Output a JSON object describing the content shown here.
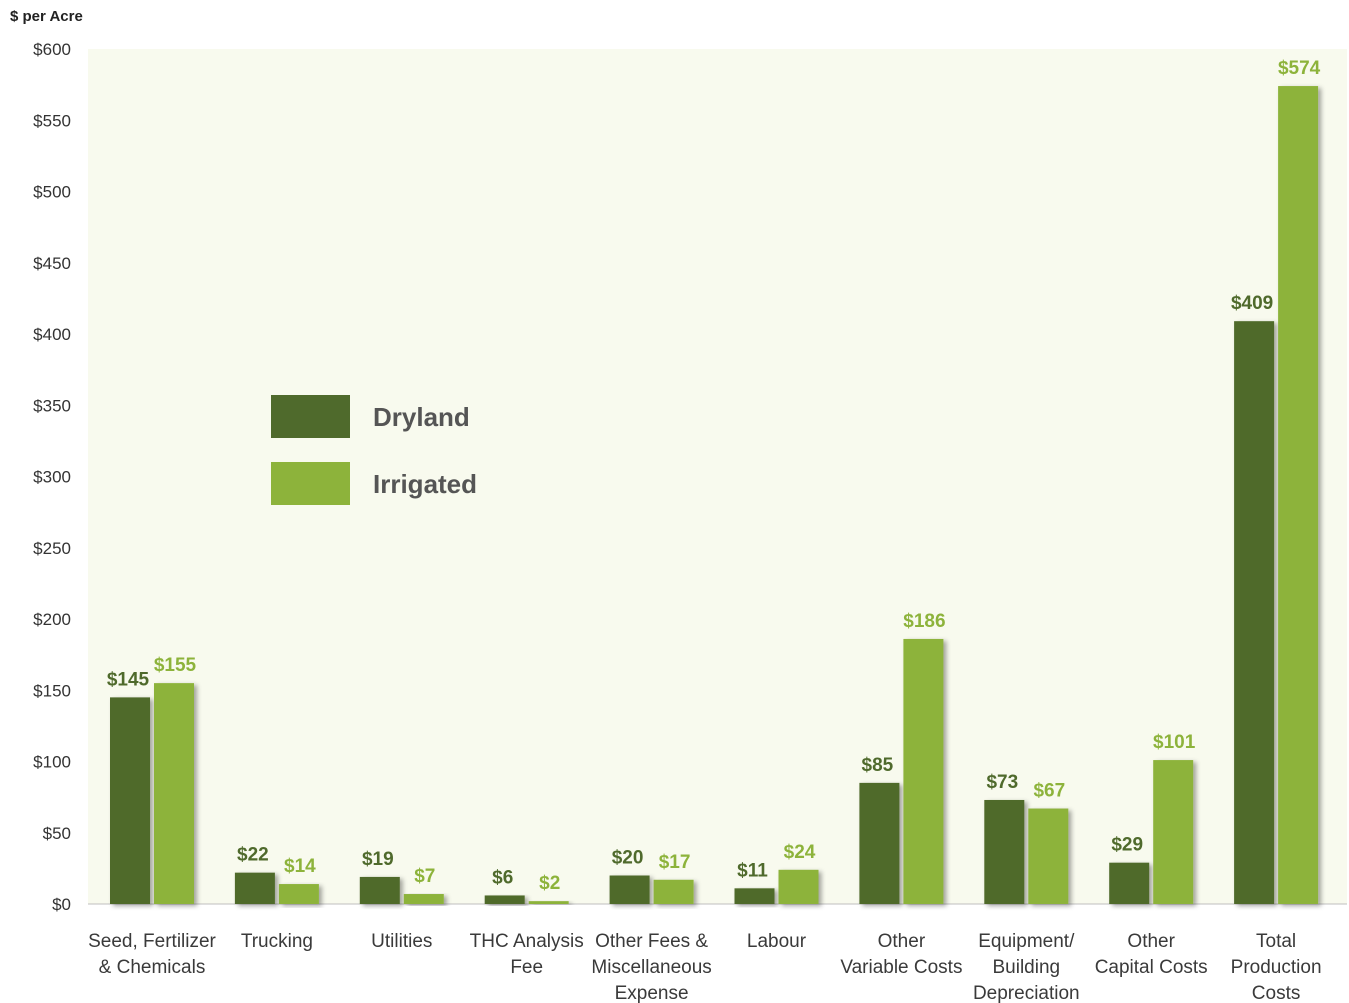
{
  "chart_data": {
    "type": "bar",
    "ylabel": "$ per Acre",
    "ylim": [
      0,
      600
    ],
    "ytick_step": 50,
    "ytick_labels": [
      "$0",
      "$50",
      "$100",
      "$150",
      "$200",
      "$250",
      "$300",
      "$350",
      "$400",
      "$450",
      "$500",
      "$550",
      "$600"
    ],
    "categories": [
      [
        "Seed, Fertilizer",
        "& Chemicals"
      ],
      [
        "Trucking"
      ],
      [
        "Utilities"
      ],
      [
        "THC Analysis",
        "Fee"
      ],
      [
        "Other Fees &",
        "Miscellaneous",
        "Expense"
      ],
      [
        "Labour"
      ],
      [
        "Other",
        "Variable Costs"
      ],
      [
        "Equipment/",
        "Building",
        "Depreciation"
      ],
      [
        "Other",
        "Capital Costs"
      ],
      [
        "Total",
        "Production",
        "Costs"
      ]
    ],
    "series": [
      {
        "name": "Dryland",
        "color": "#4f6a2c",
        "values": [
          145,
          22,
          19,
          6,
          20,
          11,
          85,
          73,
          29,
          409
        ],
        "labels": [
          "$145",
          "$22",
          "$19",
          "$6",
          "$20",
          "$11",
          "$85",
          "$73",
          "$29",
          "$409"
        ]
      },
      {
        "name": "Irrigated",
        "color": "#8db33b",
        "values": [
          155,
          14,
          7,
          2,
          17,
          24,
          186,
          67,
          101,
          574
        ],
        "labels": [
          "$155",
          "$14",
          "$7",
          "$2",
          "$17",
          "$24",
          "$186",
          "$67",
          "$101",
          "$574"
        ]
      }
    ],
    "legend_position": "center-left",
    "plot_background": "#f8faee",
    "grid": false
  }
}
